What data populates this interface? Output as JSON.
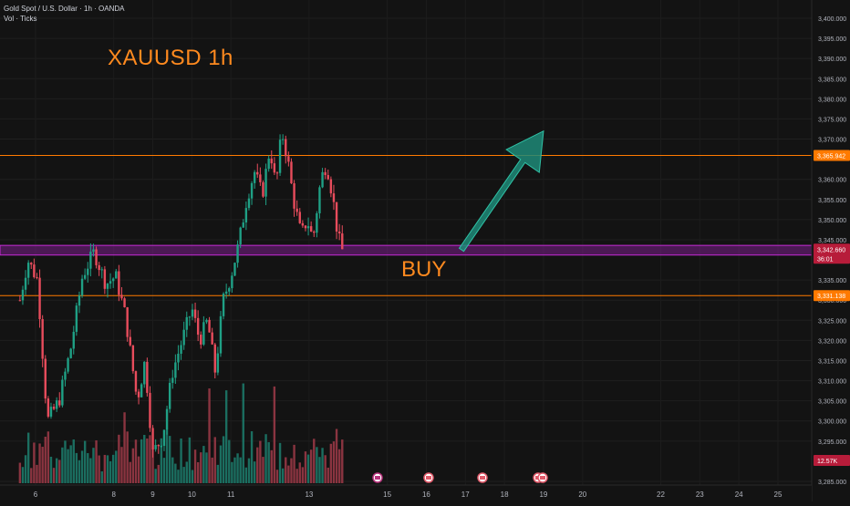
{
  "header": {
    "symbol_line": "Gold Spot / U.S. Dollar · 1h · OANDA",
    "volume_line": "Vol · Ticks"
  },
  "annotations": {
    "title": "XAUUSD 1h",
    "buy": "BUY"
  },
  "price_labels": {
    "resistance": "3,365.942",
    "current": "3,342.660",
    "countdown": "36:01",
    "support": "3,331.138",
    "volume": "12.57K"
  },
  "colors": {
    "background": "#131313",
    "up": "#1fa085",
    "down": "#e84c5c",
    "vol_up": "#1b6e60",
    "vol_down": "#8a3440",
    "level_line": "#ff7a00",
    "zone_fill": "#7a1f8a",
    "zone_border": "#c62bd6",
    "arrow": "#1f8a78",
    "text_orange": "#ff8a1f",
    "axis_text": "#b2b5be"
  },
  "chart_data": {
    "type": "candlestick",
    "title": "XAUUSD 1h",
    "y_axis": {
      "range": [
        3283,
        3406
      ],
      "ticks": [
        "3,400.000",
        "3,395.000",
        "3,390.000",
        "3,385.000",
        "3,380.000",
        "3,375.000",
        "3,370.000",
        "3,360.000",
        "3,355.000",
        "3,350.000",
        "3,345.000",
        "3,335.000",
        "3,330.000",
        "3,325.000",
        "3,320.000",
        "3,315.000",
        "3,310.000",
        "3,305.000",
        "3,300.000",
        "3,295.000",
        "3,285.000"
      ],
      "tick_values": [
        3400,
        3395,
        3390,
        3385,
        3380,
        3375,
        3370,
        3360,
        3355,
        3350,
        3345,
        3335,
        3330,
        3325,
        3320,
        3315,
        3310,
        3305,
        3300,
        3295,
        3285
      ]
    },
    "x_axis": {
      "labels": [
        "6",
        "8",
        "9",
        "10",
        "11",
        "13",
        "15",
        "16",
        "17",
        "18",
        "19",
        "20",
        "22",
        "23",
        "24",
        "25"
      ],
      "label_days": [
        6,
        8,
        9,
        10,
        11,
        13,
        15,
        16,
        17,
        18,
        19,
        20,
        22,
        23,
        24,
        25
      ]
    },
    "horizontal_levels": [
      {
        "name": "resistance",
        "value": 3365.942
      },
      {
        "name": "support",
        "value": 3331.138
      }
    ],
    "zone": {
      "low": 3341.2,
      "high": 3343.6
    },
    "current_price": 3342.66,
    "arrow": {
      "from": {
        "day": 16.9,
        "price": 3342.5
      },
      "to": {
        "day": 19.0,
        "price": 3372
      }
    },
    "price_path": [
      [
        5.6,
        3330
      ],
      [
        5.8,
        3340
      ],
      [
        6.05,
        3335
      ],
      [
        6.3,
        3300
      ],
      [
        6.6,
        3305
      ],
      [
        6.9,
        3318
      ],
      [
        7.2,
        3336
      ],
      [
        7.5,
        3342
      ],
      [
        7.8,
        3334
      ],
      [
        8.05,
        3336
      ],
      [
        8.3,
        3326
      ],
      [
        8.6,
        3305
      ],
      [
        8.8,
        3315
      ],
      [
        9.0,
        3292
      ],
      [
        9.25,
        3296
      ],
      [
        9.5,
        3312
      ],
      [
        9.75,
        3320
      ],
      [
        10.0,
        3328
      ],
      [
        10.2,
        3320
      ],
      [
        10.4,
        3325
      ],
      [
        10.6,
        3312
      ],
      [
        10.8,
        3330
      ],
      [
        11.0,
        3336
      ],
      [
        11.2,
        3344
      ],
      [
        11.4,
        3355
      ],
      [
        11.6,
        3362
      ],
      [
        11.8,
        3356
      ],
      [
        12.0,
        3368
      ],
      [
        12.15,
        3358
      ],
      [
        12.3,
        3372
      ],
      [
        12.45,
        3365
      ],
      [
        12.6,
        3355
      ],
      [
        12.8,
        3346
      ],
      [
        12.95,
        3350
      ],
      [
        13.1,
        3345
      ],
      [
        13.3,
        3360
      ],
      [
        13.45,
        3364
      ],
      [
        13.6,
        3356
      ],
      [
        13.75,
        3345
      ],
      [
        13.9,
        3342.66
      ]
    ]
  }
}
